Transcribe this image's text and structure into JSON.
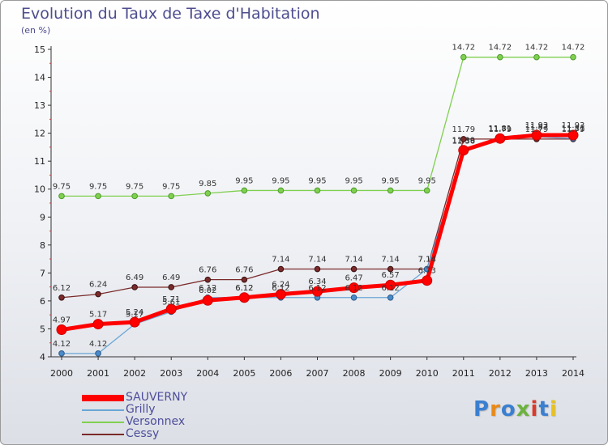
{
  "title": "Evolution du Taux de Taxe d'Habitation",
  "subtitle": "(en %)",
  "logo": {
    "text": "Proxiti",
    "colors": [
      "#3a7fd0",
      "#e88a1a",
      "#3a7fd0",
      "#6cb33f",
      "#d93a2b",
      "#3a7fd0",
      "#e8c21a"
    ]
  },
  "chart_data": {
    "type": "line",
    "title": "Evolution du Taux de Taxe d'Habitation",
    "ylabel": "(en %)",
    "xlabel": "",
    "x": [
      "2000",
      "2001",
      "2002",
      "2003",
      "2004",
      "2005",
      "2006",
      "2007",
      "2008",
      "2009",
      "2010",
      "2011",
      "2012",
      "2013",
      "2014"
    ],
    "ylim": [
      4,
      15
    ],
    "yticks": [
      4,
      5,
      6,
      7,
      8,
      9,
      10,
      11,
      12,
      13,
      14,
      15
    ],
    "grid": false,
    "legend": "bottom-left",
    "series": [
      {
        "name": "SAUVERNY",
        "color": "#ff0000",
        "values": [
          4.97,
          5.17,
          5.24,
          5.71,
          6.02,
          6.12,
          6.24,
          6.34,
          6.47,
          6.57,
          6.73,
          11.39,
          11.81,
          11.93,
          11.93
        ]
      },
      {
        "name": "Grilly",
        "color": "#6aa6d6",
        "values": [
          4.12,
          4.12,
          5.17,
          5.61,
          6.12,
          6.12,
          6.12,
          6.12,
          6.12,
          6.12,
          7.14,
          11.36,
          11.81,
          11.87,
          11.81
        ]
      },
      {
        "name": "Versonnex",
        "color": "#80d050",
        "values": [
          9.75,
          9.75,
          9.75,
          9.75,
          9.85,
          9.95,
          9.95,
          9.95,
          9.95,
          9.95,
          9.95,
          14.72,
          14.72,
          14.72,
          14.72
        ]
      },
      {
        "name": "Cessy",
        "color": "#7a2a2a",
        "values": [
          6.12,
          6.24,
          6.49,
          6.49,
          6.76,
          6.76,
          7.14,
          7.14,
          7.14,
          7.14,
          7.14,
          11.79,
          11.79,
          11.79,
          11.79
        ]
      }
    ]
  }
}
